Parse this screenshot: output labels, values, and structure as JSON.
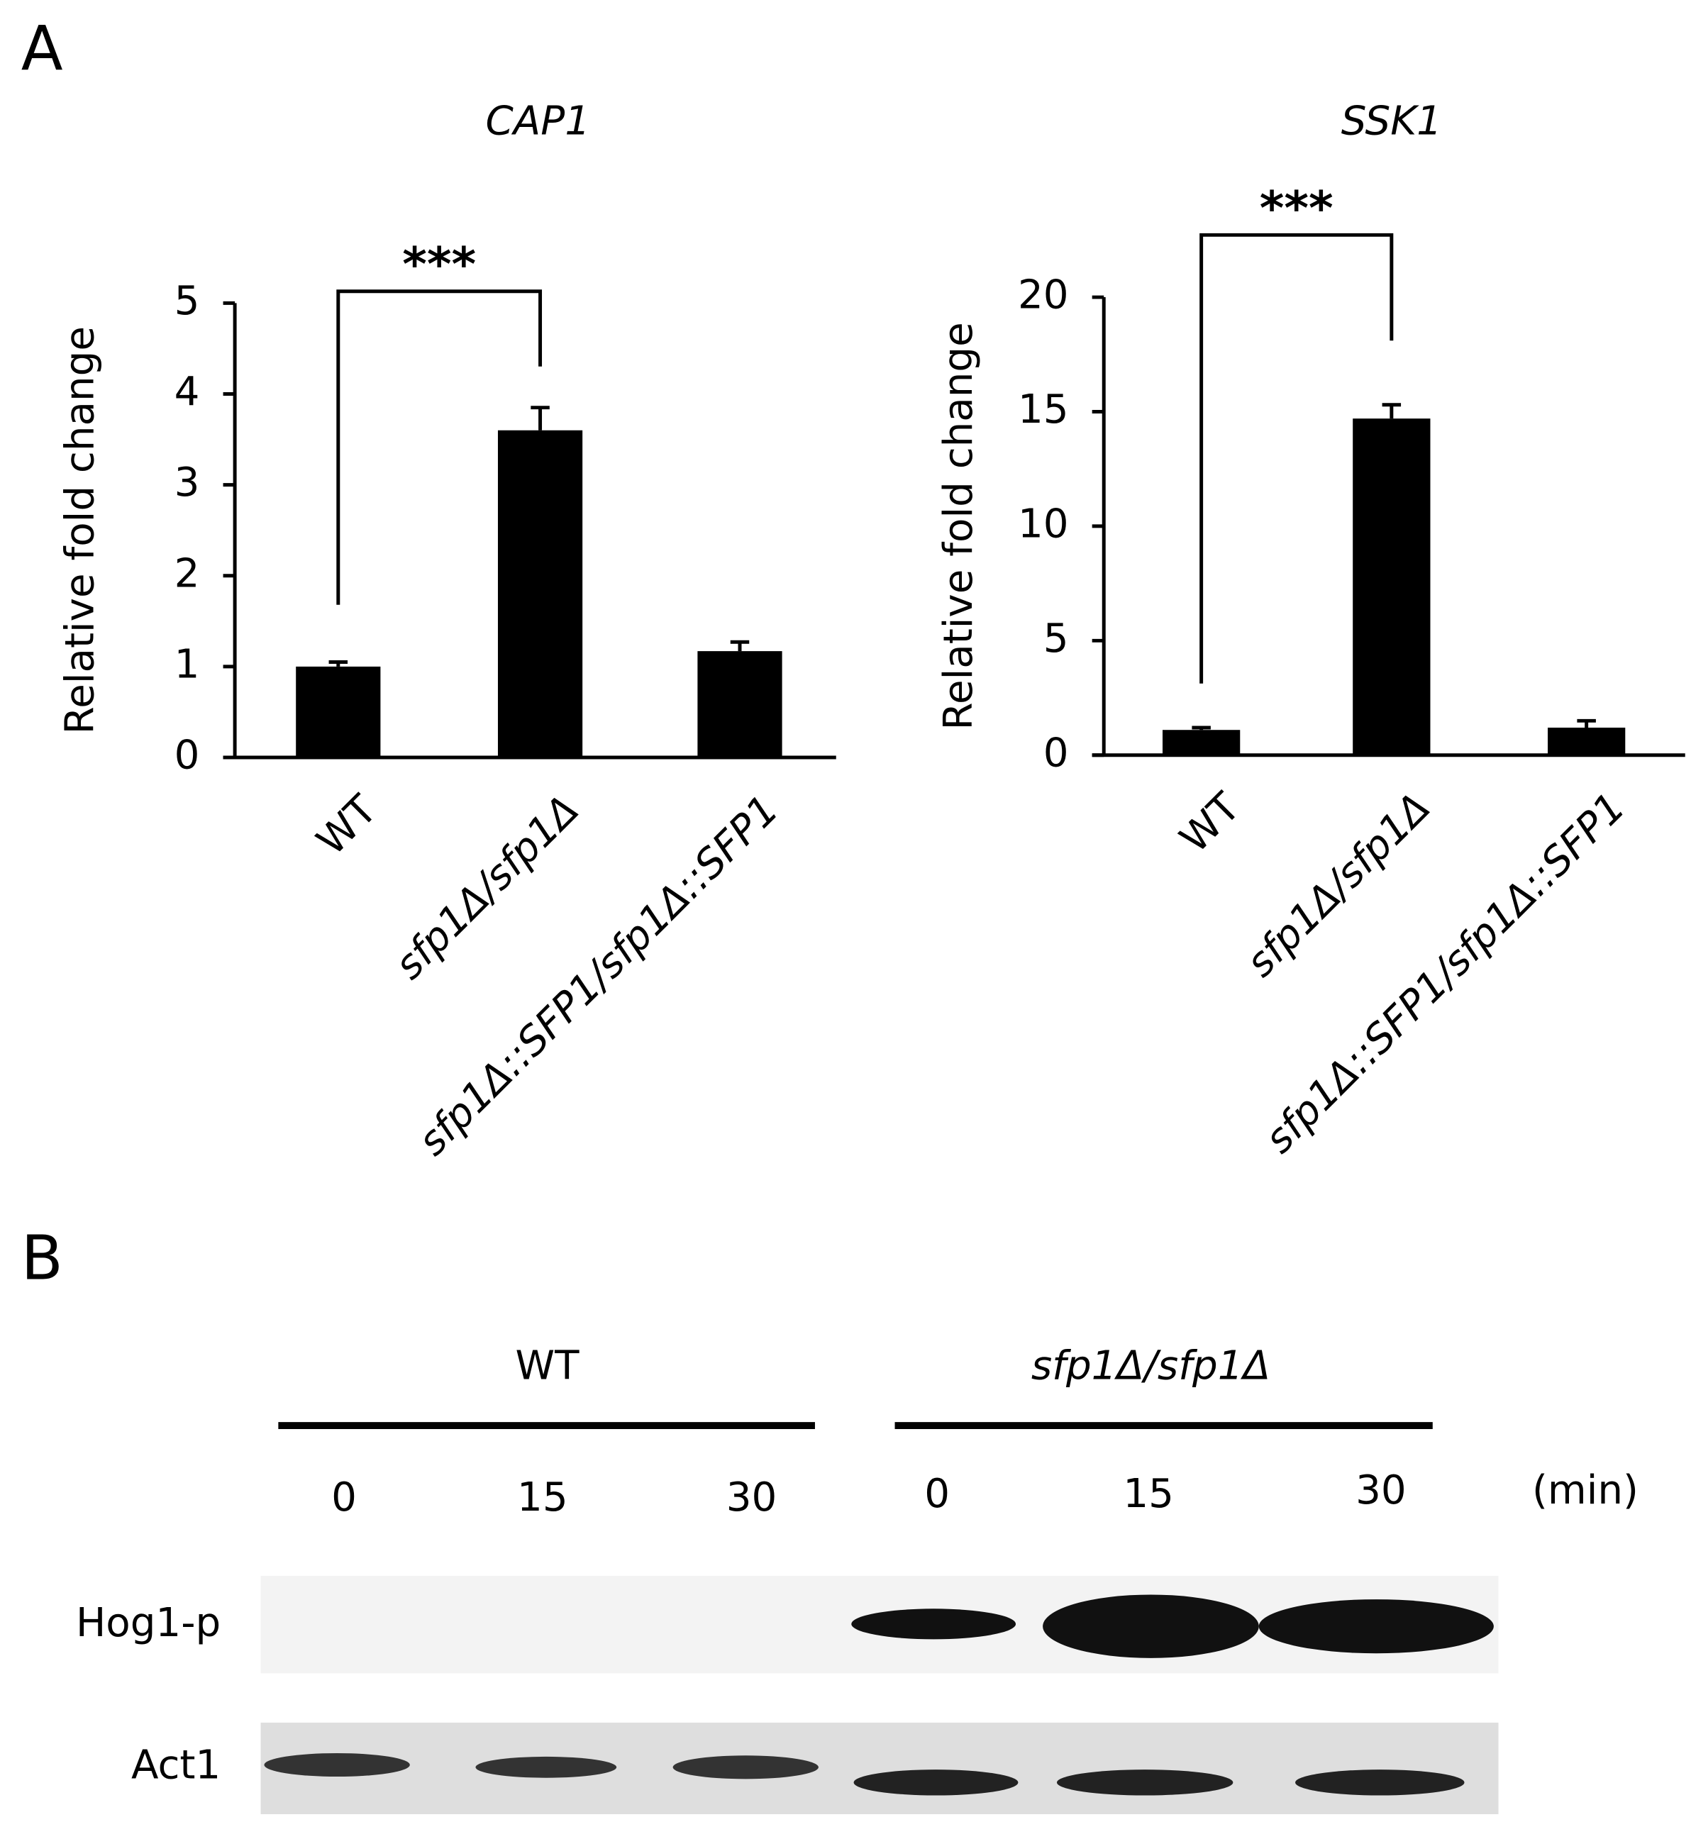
{
  "panels": [
    "A",
    "B"
  ],
  "chart_data": [
    {
      "type": "bar",
      "title": "CAP1",
      "y_label": "Relative fold change",
      "categories": [
        "WT",
        "sfp1Δ/sfp1Δ",
        "sfp1Δ::SFP1/sfp1Δ::SFP1"
      ],
      "values": [
        1.0,
        3.6,
        1.17
      ],
      "errors": [
        0.05,
        0.25,
        0.1
      ],
      "color": "#000000",
      "ylim": [
        0,
        5
      ],
      "yticks": [
        0,
        1,
        2,
        3,
        4,
        5
      ],
      "annotation": "***"
    },
    {
      "type": "bar",
      "title": "SSK1",
      "y_label": "Relative fold change",
      "categories": [
        "WT",
        "sfp1Δ/sfp1Δ",
        "sfp1Δ::SFP1/sfp1Δ::SFP1"
      ],
      "values": [
        1.1,
        14.7,
        1.2
      ],
      "errors": [
        0.1,
        0.6,
        0.3
      ],
      "color": "#000000",
      "ylim": [
        0,
        20
      ],
      "yticks": [
        0,
        5,
        10,
        15,
        20
      ],
      "annotation": "***"
    }
  ],
  "blot": {
    "groups": [
      "WT",
      "sfp1Δ/sfp1Δ"
    ],
    "times": [
      "0",
      "15",
      "30",
      "0",
      "15",
      "30"
    ],
    "unit": "(min)",
    "rows": [
      "Hog1-p",
      "Act1"
    ]
  }
}
